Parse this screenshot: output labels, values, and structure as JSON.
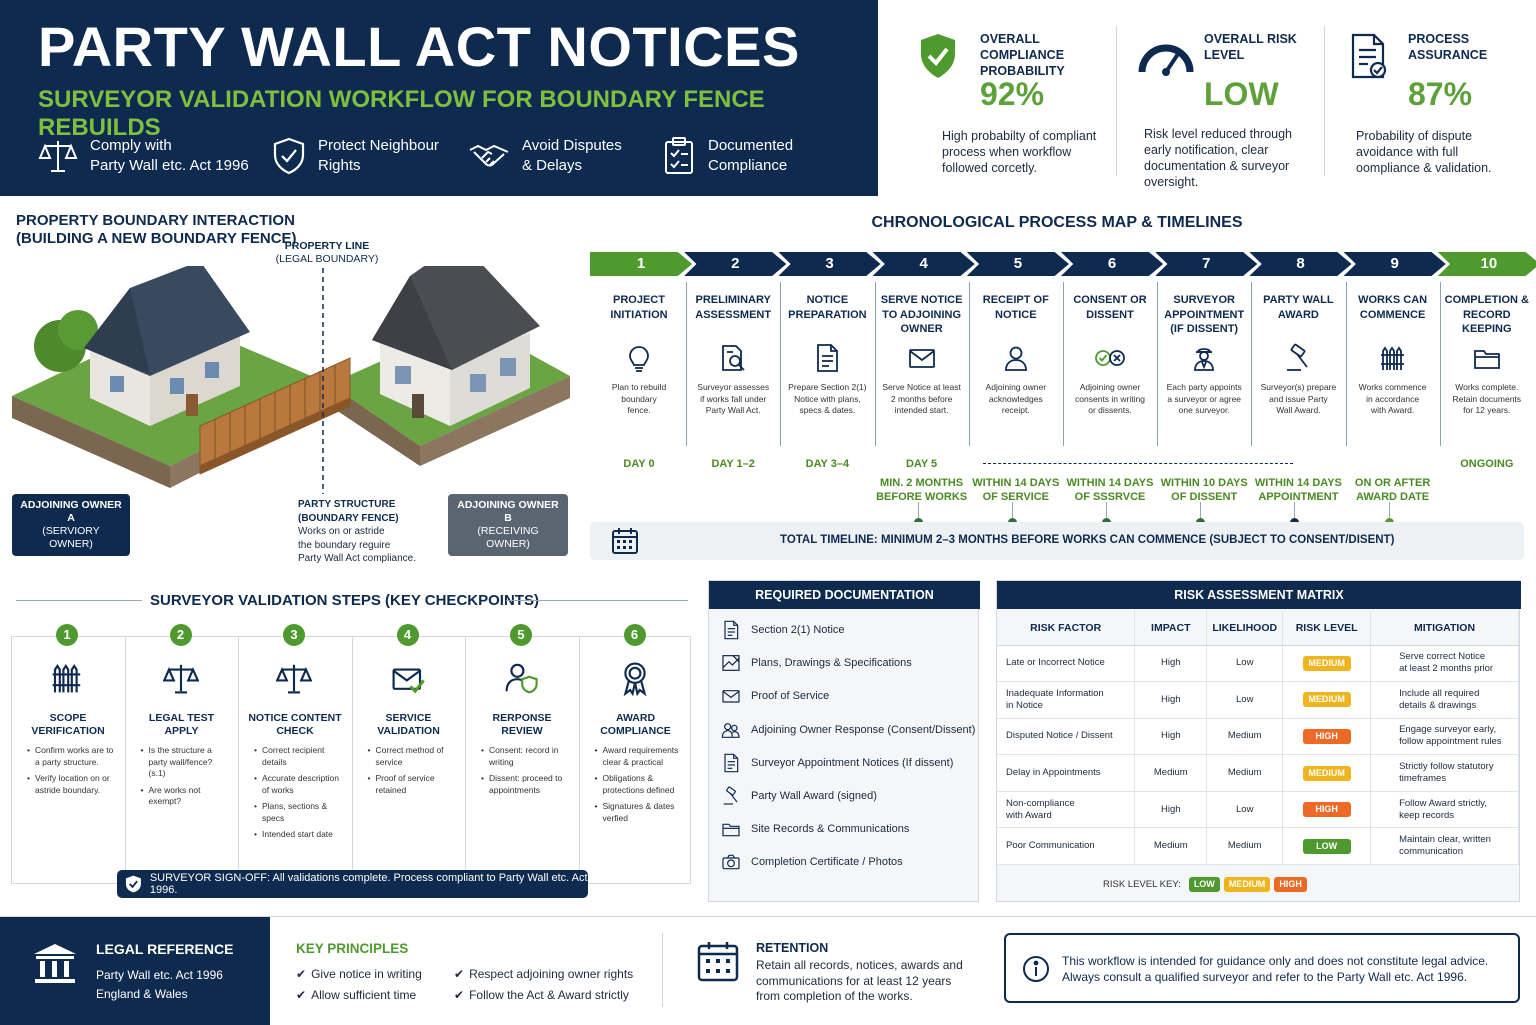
{
  "header": {
    "title": "PARTY WALL ACT NOTICES",
    "subtitle": "SURVEYOR VALIDATION WORKFLOW FOR BOUNDARY FENCE REBUILDS",
    "features": [
      {
        "icon": "scales-icon",
        "line1": "Comply with",
        "line2": "Party Wall etc. Act 1996"
      },
      {
        "icon": "shield-check-icon",
        "line1": "Protect Neighbour",
        "line2": "Rights"
      },
      {
        "icon": "handshake-icon",
        "line1": "Avoid Disputes",
        "line2": "& Delays"
      },
      {
        "icon": "clipboard-check-icon",
        "line1": "Documented",
        "line2": "Compliance"
      }
    ]
  },
  "metrics": [
    {
      "icon": "shield-check-icon",
      "title1": "OVERALL COMPLIANCE",
      "title2": "PROBABILITY",
      "value": "92%",
      "desc1": "High probabilty of compliant",
      "desc2": "process when workflow",
      "desc3": "followed corcetly.",
      "desc4": ""
    },
    {
      "icon": "gauge-icon",
      "title1": "OVERALL RISK",
      "title2": "LEVEL",
      "value": "LOW",
      "desc1": "Risk level reduced through",
      "desc2": "early notification, clear",
      "desc3": "documentation & surveyor",
      "desc4": "oversight."
    },
    {
      "icon": "document-check-icon",
      "title1": "PROCESS",
      "title2": "ASSURANCE",
      "value": "87%",
      "desc1": "Probability of dispute",
      "desc2": "avoidance with full",
      "desc3": "oomplіance & validation.",
      "desc4": ""
    }
  ],
  "boundary": {
    "title1": "PROPERTY BOUNDARY INTERACTION",
    "title2": "(BUILDING A NEW BOUNDARY FENCE)",
    "property_line1": "PROPERTY LINE",
    "property_line2": "(LEGAL BOUNDARY)",
    "owner_a1": "ADJOINING OWNER A",
    "owner_a2": "(SERVIORY OWNER)",
    "owner_b1": "ADJOINING OWNER B",
    "owner_b2": "(RECEIVING OWNER)",
    "party1": "PARTY STRUCTURE",
    "party2": "(BOUNDARY FENCE)",
    "party3": "Works on or astride",
    "party4": "the boundary reguire",
    "party5": "Party Wall Act compliance."
  },
  "process": {
    "title": "CHRONOLOGICAL PROCESS MAP & TIMELINES",
    "total_timeline": "TOTAL TIMELINE: MINIMUM 2–3 MONTHS BEFORE WORKS CAN COMMENCE (SUBJECT TO CONSENT/DISENT)",
    "steps": [
      {
        "num": "1",
        "t1": "PROJECT",
        "t2": "INITIATION",
        "t3": "",
        "icon": "lightbulb-icon",
        "d1": "Plan to rebuild",
        "d2": "boundary",
        "d3": "fence.",
        "day": "DAY 0",
        "sub1": "",
        "sub2": ""
      },
      {
        "num": "2",
        "t1": "PRELIMINARY",
        "t2": "ASSESSMENT",
        "t3": "",
        "icon": "magnifier-document-icon",
        "d1": "Surveyor assesses",
        "d2": "if works fall under",
        "d3": "Party Wall Act.",
        "day": "DAY 1–2",
        "sub1": "",
        "sub2": ""
      },
      {
        "num": "3",
        "t1": "NOTICE",
        "t2": "PREPARATION",
        "t3": "",
        "icon": "document-icon",
        "d1": "Prepare Section 2(1)",
        "d2": "Notice with plans,",
        "d3": "specs & dates.",
        "day": "DAY 3–4",
        "sub1": "",
        "sub2": ""
      },
      {
        "num": "4",
        "t1": "SERVE NOTICE",
        "t2": "TO ADJOINING",
        "t3": "OWNER",
        "icon": "envelope-icon",
        "d1": "Serve Notice at least",
        "d2": "2 months before",
        "d3": "intended start.",
        "day": "DAY 5",
        "sub1": "MIN. 2 MONTHS",
        "sub2": "BEFORE WORKS"
      },
      {
        "num": "5",
        "t1": "RECEIPT OF",
        "t2": "NOTICE",
        "t3": "",
        "icon": "person-icon",
        "d1": "Adjoining owner",
        "d2": "acknowledges",
        "d3": "receipt.",
        "day": "",
        "sub1": "WITHIN 14 DAYS",
        "sub2": "OF SERVICE"
      },
      {
        "num": "6",
        "t1": "CONSENT OR",
        "t2": "DISSENT",
        "t3": "",
        "icon": "check-cross-icon",
        "d1": "Adjoining owner",
        "d2": "consents in writing",
        "d3": "or dissents.",
        "day": "",
        "sub1": "WITHIN 14 DAYS",
        "sub2": "OF SSSRVCE"
      },
      {
        "num": "7",
        "t1": "SURVEYOR",
        "t2": "APPOINTMENT",
        "t3": "(IF DISSENT)",
        "icon": "surveyor-icon",
        "d1": "Each party appoints",
        "d2": "a surveyor or agree",
        "d3": "one surveyor.",
        "day": "",
        "sub1": "WITHIN 10 DAYS",
        "sub2": "OF DISSENT"
      },
      {
        "num": "8",
        "t1": "PARTY WALL",
        "t2": "AWARD",
        "t3": "",
        "icon": "gavel-icon",
        "d1": "Surveyor(s) prepare",
        "d2": "and issue Party",
        "d3": "Wall Award.",
        "day": "",
        "sub1": "WITHIN 14 DAYS",
        "sub2": "APPOINTMENT"
      },
      {
        "num": "9",
        "t1": "WORKS CAN",
        "t2": "COMMENCE",
        "t3": "",
        "icon": "fence-icon",
        "d1": "Works commence",
        "d2": "in accordance",
        "d3": "with Award.",
        "day": "",
        "sub1": "ON OR AFTER",
        "sub2": "AWARD DATE"
      },
      {
        "num": "10",
        "t1": "COMPLETION &",
        "t2": "RECORD KEEPING",
        "t3": "",
        "icon": "folder-icon",
        "d1": "Works complete.",
        "d2": "Retain documents",
        "d3": "for 12 years.",
        "day": "ONGOING",
        "sub1": "",
        "sub2": ""
      }
    ]
  },
  "validation": {
    "title": "SURVEYOR VALIDATION STEPS (KEY CHECKPOINTS)",
    "signoff": "SURVEYOR SIGN-OFF: All validations complete. Process compliant to Party Wall etc. Act 1996.",
    "steps": [
      {
        "num": "1",
        "icon": "fence-icon",
        "t1": "SCOPE",
        "t2": "VERIFICATION",
        "items": [
          "Confirm works are to a party structure.",
          "Verify location on or astride boundary."
        ]
      },
      {
        "num": "2",
        "icon": "scales-icon",
        "t1": "LEGAL TEST",
        "t2": "APPLY",
        "items": [
          "Is the structure a party wall/fence? (s.1)",
          "Are works not exempt?"
        ]
      },
      {
        "num": "3",
        "icon": "scales-icon",
        "t1": "NOTICE CONTENT",
        "t2": "CHECK",
        "items": [
          "Correct recipient details",
          "Accurate description of works",
          "Plans, sections & specs",
          "Intended start date"
        ]
      },
      {
        "num": "4",
        "icon": "envelope-check-icon",
        "t1": "SERVICE",
        "t2": "VALIDATION",
        "items": [
          "Correct method of service",
          "Proof of service retained"
        ]
      },
      {
        "num": "5",
        "icon": "person-shield-icon",
        "t1": "RERPONSE",
        "t2": "REVIEW",
        "items": [
          "Consent: record in writing",
          "Dissent: proceed to appointments"
        ]
      },
      {
        "num": "6",
        "icon": "award-icon",
        "t1": "AWARD",
        "t2": "COMPLIANCE",
        "items": [
          "Award requirements clear & practical",
          "Obligations & protections defined",
          "Signatures & dates verfied"
        ]
      }
    ]
  },
  "documentation": {
    "title": "REQUIRED DOCUMENTATION",
    "items": [
      {
        "icon": "document-icon",
        "label": "Section 2(1) Notice"
      },
      {
        "icon": "drawing-icon",
        "label": "Plans, Drawings & Specifications"
      },
      {
        "icon": "envelope-icon",
        "label": "Proof of Service"
      },
      {
        "icon": "people-icon",
        "label": "Adjoining Owner Response (Consent/Dissent)"
      },
      {
        "icon": "document-icon",
        "label": "Surveyor Appointment Notices (If dissent)"
      },
      {
        "icon": "gavel-icon",
        "label": "Party Wall Award (signed)"
      },
      {
        "icon": "folder-icon",
        "label": "Site Records & Communications"
      },
      {
        "icon": "camera-icon",
        "label": "Completion Certificate / Photos"
      }
    ]
  },
  "risk": {
    "title": "RISK ASSESSMENT MATRIX",
    "headers": [
      "RISK FACTOR",
      "IMPACT",
      "LIKELIHOOD",
      "RISK LEVEL",
      "MITIGATION"
    ],
    "rows": [
      {
        "f1": "Late or Incorrect Notice",
        "f2": "",
        "impact": "High",
        "likelihood": "Low",
        "level": "MEDIUM",
        "m1": "Serve correct Notice",
        "m2": "at least 2 months prior"
      },
      {
        "f1": "Inadequate Information",
        "f2": "in Notice",
        "impact": "High",
        "likelihood": "Low",
        "level": "MEDIUM",
        "m1": "Include all required",
        "m2": "details & drawings"
      },
      {
        "f1": "Disputed Notice / Dissent",
        "f2": "",
        "impact": "High",
        "likelihood": "Medium",
        "level": "HIGH",
        "m1": "Engage surveyor early,",
        "m2": "follow appointment rules"
      },
      {
        "f1": "Delay in Appointments",
        "f2": "",
        "impact": "Medium",
        "likelihood": "Medium",
        "level": "MEDIUM",
        "m1": "Strictly follow statutory",
        "m2": "timeframes"
      },
      {
        "f1": "Non-compliance",
        "f2": "with Award",
        "impact": "High",
        "likelihood": "Low",
        "level": "HIGH",
        "m1": "Follow Award strictly,",
        "m2": "keep records"
      },
      {
        "f1": "Poor Communication",
        "f2": "",
        "impact": "Medium",
        "likelihood": "Medium",
        "level": "LOW",
        "m1": "Maintain clear, written",
        "m2": "communication"
      }
    ],
    "key_label": "RISK LEVEL KEY:",
    "key_low": "LOW",
    "key_medium": "MEDIUM",
    "key_high": "HIGH",
    "colors": {
      "LOW": "#4f9a2e",
      "MEDIUM": "#f0b41e",
      "HIGH": "#ec6a25"
    }
  },
  "footer": {
    "legal_title": "LEGAL REFERENCE",
    "legal1": "Party Wall etc. Act 1996",
    "legal2": "England & Wales",
    "principles_title": "KEY PRINCIPLES",
    "principles": [
      "Give notice in writing",
      "Respect adjoining owner rights",
      "Allow sufficient time",
      "Follow the Act & Award strictly"
    ],
    "retention_title": "RETENTION",
    "retention1": "Retain all records, notices, awards and",
    "retention2": "communications for at least 12 years",
    "retention3": "from completion of the works.",
    "disclaimer1": "This workflow is intended for guidance only and does not constitute legal advice.",
    "disclaimer2": "Always consult a qualified surveyor and refer to the Party Wall etc. Act 1996."
  },
  "colors": {
    "navy": "#0f2a4f",
    "green": "#4f9a2e",
    "light_green": "#7fbf3f"
  }
}
